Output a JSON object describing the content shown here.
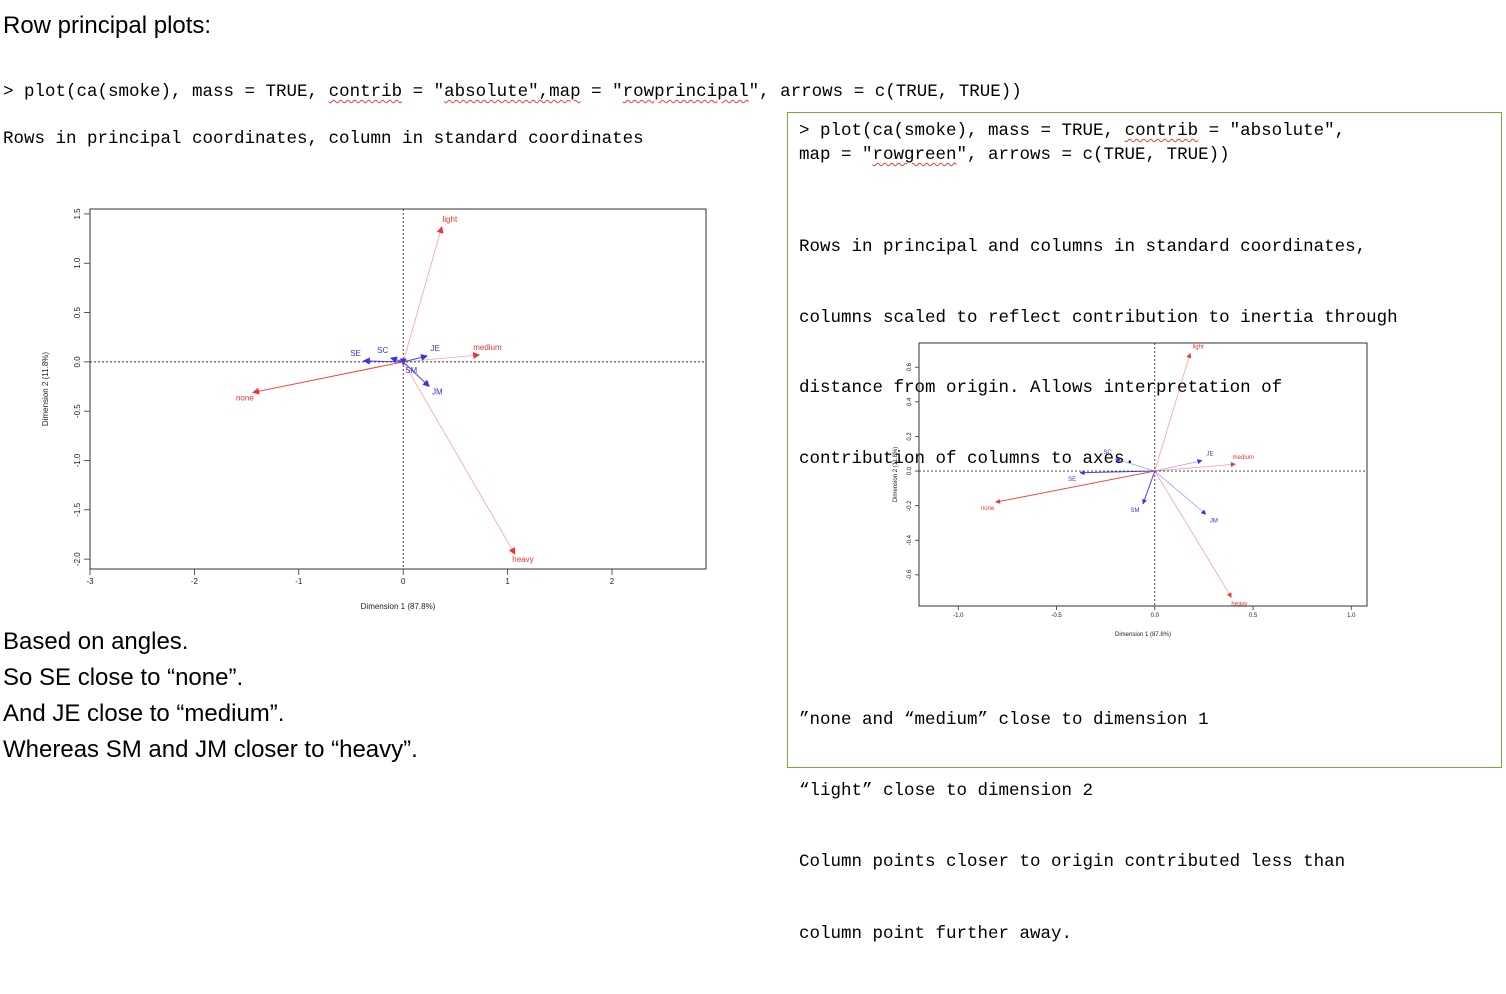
{
  "heading": "Row principal plots:",
  "command1": {
    "prefix": "> plot(ca(smoke), mass = TRUE, ",
    "w1": "contrib",
    "mid1": " = \"",
    "w2": "absolute\",map",
    "mid2": " = \"",
    "w3": "rowprincipal",
    "suffix": "\", arrows = c(TRUE, TRUE))"
  },
  "description1": "Rows in principal coordinates, column in standard coordinates",
  "notes": [
    "Based on angles.",
    "So SE close to “none”.",
    "And JE close to “medium”.",
    "Whereas SM and JM closer to “heavy”."
  ],
  "command2": {
    "line1_prefix": "> plot(ca(smoke), mass = TRUE, ",
    "line1_w": "contrib",
    "line1_suffix": " = \"absolute\",",
    "line2_prefix": "map = \"",
    "line2_w": "rowgreen",
    "line2_suffix": "\", arrows = c(TRUE, TRUE))"
  },
  "description2": [
    "Rows in principal and columns in standard coordinates,",
    "columns scaled to reflect contribution to inertia through",
    "distance from origin. Allows interpretation of",
    "contribution of columns to axes."
  ],
  "bottom_text": [
    "”none and “medium” close to dimension 1",
    "“light” close to dimension 2",
    "Column points closer to origin contributed less than",
    "column point further away."
  ],
  "colors": {
    "rows": "#3333ee",
    "columns": "#ee3333",
    "box_border": "#70ad47"
  },
  "chart_data": [
    {
      "type": "scatter",
      "map": "rowprincipal",
      "xlabel": "Dimension 1 (87.8%)",
      "ylabel": "Dimension 2 (11.8%)",
      "xlim": [
        -3.0,
        2.9
      ],
      "ylim": [
        -2.1,
        1.55
      ],
      "xticks": [
        -3,
        -2,
        -1,
        0,
        1,
        2
      ],
      "yticks": [
        -2.0,
        -1.5,
        -1.0,
        -0.5,
        0.0,
        0.5,
        1.0,
        1.5
      ],
      "xtick_labels": [
        "-3",
        "-2",
        "-1",
        "0",
        "1",
        "2"
      ],
      "ytick_labels": [
        "-2.0",
        "-1.5",
        "-1.0",
        "-0.5",
        "0.0",
        "0.5",
        "1.0",
        "1.5"
      ],
      "series": [
        {
          "name": "rows",
          "points": [
            {
              "label": "SE",
              "x": -0.38,
              "y": 0.01
            },
            {
              "label": "SC",
              "x": -0.12,
              "y": 0.04
            },
            {
              "label": "JE",
              "x": 0.23,
              "y": 0.06
            },
            {
              "label": "SM",
              "x": 0.0,
              "y": -0.03
            },
            {
              "label": "JM",
              "x": 0.25,
              "y": -0.25
            }
          ]
        },
        {
          "name": "columns",
          "points": [
            {
              "label": "none",
              "x": -1.44,
              "y": -0.31
            },
            {
              "label": "light",
              "x": 0.37,
              "y": 1.37
            },
            {
              "label": "medium",
              "x": 0.73,
              "y": 0.07
            },
            {
              "label": "heavy",
              "x": 1.07,
              "y": -1.95
            }
          ]
        }
      ]
    },
    {
      "type": "scatter",
      "map": "rowgreen",
      "xlabel": "Dimension 1 (87.8%)",
      "ylabel": "Dimension 2 (11.8%)",
      "xlim": [
        -1.2,
        1.08
      ],
      "ylim": [
        -0.78,
        0.74
      ],
      "xticks": [
        -1.0,
        -0.5,
        0.0,
        0.5,
        1.0
      ],
      "yticks": [
        -0.6,
        -0.4,
        -0.2,
        0.0,
        0.2,
        0.4,
        0.6
      ],
      "xtick_labels": [
        "-1.0",
        "-0.5",
        "0.0",
        "0.5",
        "1.0"
      ],
      "ytick_labels": [
        "-0.6",
        "-0.4",
        "-0.2",
        "0.0",
        "0.2",
        "0.4",
        "0.6"
      ],
      "series": [
        {
          "name": "rows",
          "points": [
            {
              "label": "SE",
              "x": -0.38,
              "y": -0.01
            },
            {
              "label": "SC",
              "x": -0.2,
              "y": 0.07
            },
            {
              "label": "JE",
              "x": 0.24,
              "y": 0.06
            },
            {
              "label": "SM",
              "x": -0.06,
              "y": -0.19
            },
            {
              "label": "JM",
              "x": 0.26,
              "y": -0.25
            }
          ]
        },
        {
          "name": "columns",
          "points": [
            {
              "label": "none",
              "x": -0.81,
              "y": -0.18
            },
            {
              "label": "light",
              "x": 0.18,
              "y": 0.68
            },
            {
              "label": "medium",
              "x": 0.41,
              "y": 0.04
            },
            {
              "label": "heavy",
              "x": 0.39,
              "y": -0.73
            }
          ]
        }
      ]
    }
  ]
}
